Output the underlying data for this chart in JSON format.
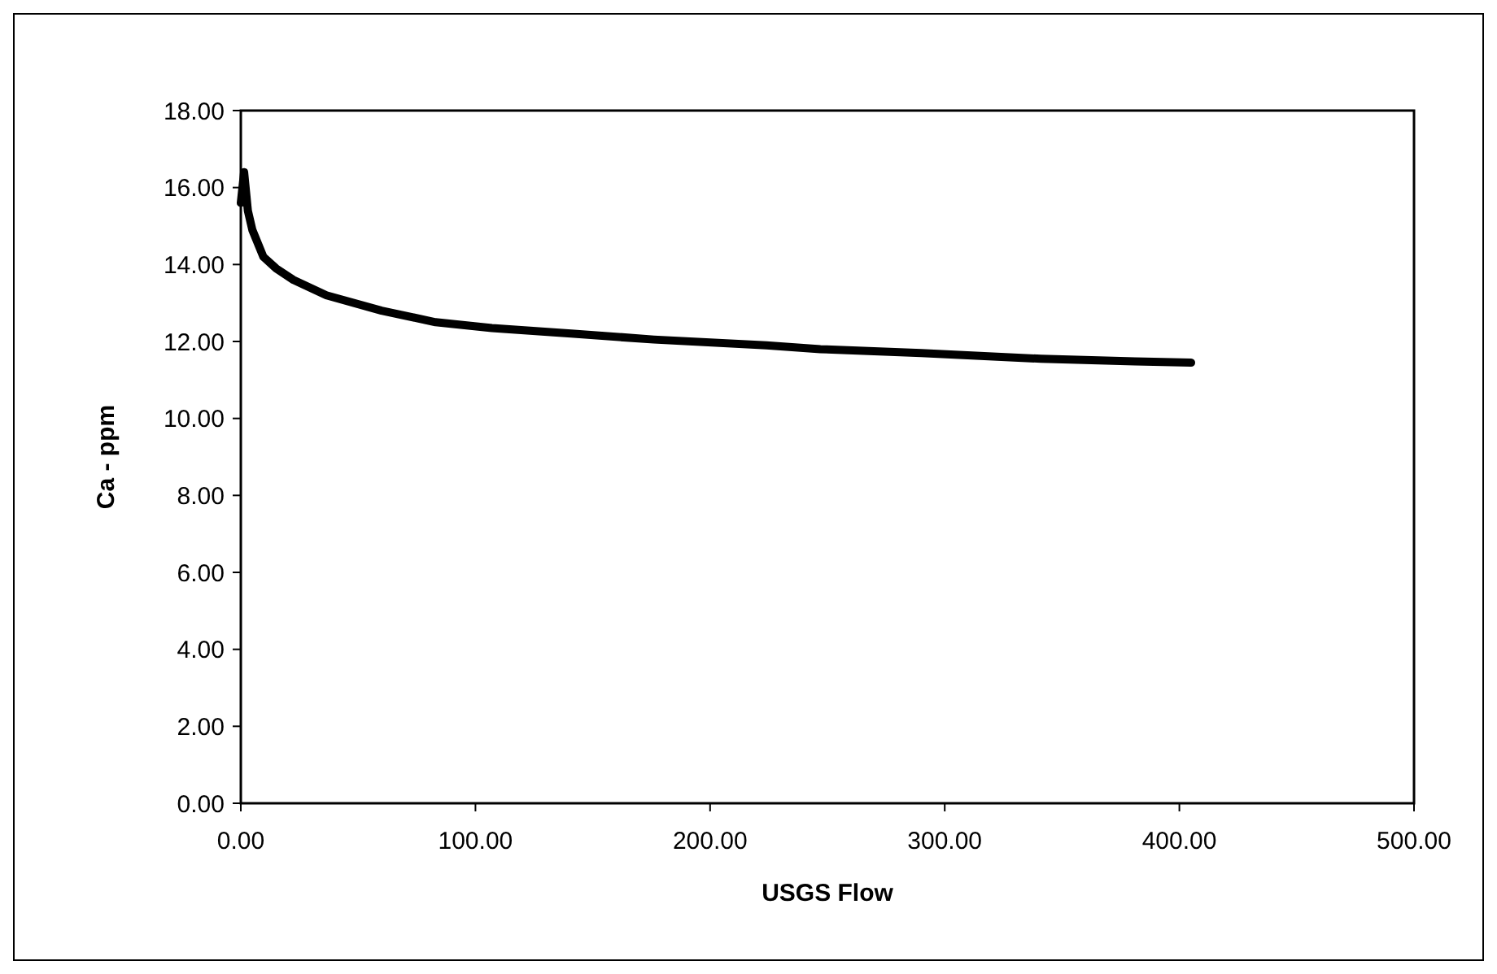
{
  "chart_data": {
    "type": "line",
    "xlabel": "USGS Flow",
    "ylabel": "Ca - ppm",
    "xlim": [
      0,
      500
    ],
    "ylim": [
      0,
      18
    ],
    "xticks": [
      {
        "value": 0,
        "label": "0.00"
      },
      {
        "value": 100,
        "label": "100.00"
      },
      {
        "value": 200,
        "label": "200.00"
      },
      {
        "value": 300,
        "label": "300.00"
      },
      {
        "value": 400,
        "label": "400.00"
      },
      {
        "value": 500,
        "label": "500.00"
      }
    ],
    "yticks": [
      {
        "value": 0,
        "label": "0.00"
      },
      {
        "value": 2,
        "label": "2.00"
      },
      {
        "value": 4,
        "label": "4.00"
      },
      {
        "value": 6,
        "label": "6.00"
      },
      {
        "value": 8,
        "label": "8.00"
      },
      {
        "value": 10,
        "label": "10.00"
      },
      {
        "value": 12,
        "label": "12.00"
      },
      {
        "value": 14,
        "label": "14.00"
      },
      {
        "value": 16,
        "label": "16.00"
      },
      {
        "value": 18,
        "label": "18.00"
      }
    ],
    "grid": false,
    "marker": "none",
    "line_style": "solid",
    "series": [
      {
        "color": "#000000",
        "x": [
          0,
          1.4,
          3,
          4.9,
          9.6,
          15,
          22.4,
          36.5,
          60,
          83,
          107,
          142,
          176,
          224,
          247,
          290,
          341,
          381,
          405
        ],
        "values": [
          15.6,
          16.4,
          15.4,
          14.9,
          14.2,
          13.9,
          13.6,
          13.2,
          12.8,
          12.5,
          12.35,
          12.2,
          12.05,
          11.9,
          11.8,
          11.7,
          11.55,
          11.48,
          11.45
        ]
      }
    ]
  }
}
